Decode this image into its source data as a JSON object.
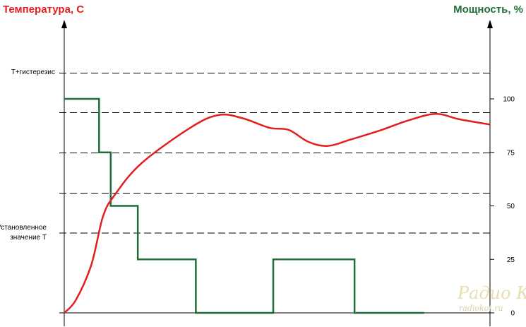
{
  "chart_data": {
    "type": "line",
    "title_left": "Температура, C",
    "title_right": "Мощность, %",
    "colors": {
      "temperature": "#e31e1e",
      "power": "#1f6e36",
      "title_left": "#e31e1e",
      "title_right": "#1f6e36",
      "grid": "#000000"
    },
    "left_labels": [
      {
        "text": "T+гистерезис",
        "level": 3
      },
      {
        "text": "Установленное",
        "level": 0
      },
      {
        "text": "значение Т",
        "level": 0
      }
    ],
    "right_axis": {
      "ylim": [
        0,
        100
      ],
      "ticks": [
        "0",
        "25",
        "50",
        "75",
        "100"
      ]
    },
    "grid": "dashed",
    "series": [
      {
        "key": "power",
        "step": true,
        "x": [
          0,
          9,
          12,
          19,
          34,
          54,
          75,
          93
        ],
        "y": [
          100,
          75,
          50,
          25,
          0,
          25,
          0,
          0
        ]
      },
      {
        "key": "temperature",
        "curve": [
          [
            0,
            0
          ],
          [
            3,
            12
          ],
          [
            7,
            45
          ],
          [
            10,
            90
          ],
          [
            13,
            110
          ],
          [
            20,
            140
          ],
          [
            33,
            174
          ],
          [
            40,
            185
          ],
          [
            46,
            182
          ],
          [
            53,
            173
          ],
          [
            58,
            171
          ],
          [
            63,
            160
          ],
          [
            68,
            156
          ],
          [
            74,
            162
          ],
          [
            82,
            171
          ],
          [
            89,
            180
          ],
          [
            96,
            186
          ],
          [
            102,
            181
          ],
          [
            110,
            176
          ]
        ]
      }
    ],
    "watermark": {
      "line1": "Радио КОТ",
      "line2": "radiokot.ru"
    }
  }
}
